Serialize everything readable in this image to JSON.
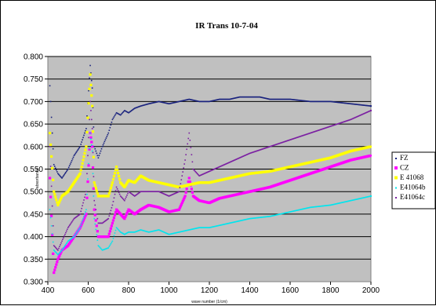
{
  "chart_data": {
    "type": "scatter",
    "title": "IR Trans  10-7-04",
    "xlabel": "wave number (1/cm)",
    "ylabel": "absorbance",
    "xlim": [
      400,
      2000
    ],
    "ylim": [
      0.3,
      0.8
    ],
    "x_ticks": [
      "400",
      "600",
      "800",
      "1000",
      "1200",
      "1400",
      "1600",
      "1800",
      "2000"
    ],
    "y_ticks": [
      "0.300",
      "0.350",
      "0.400",
      "0.450",
      "0.500",
      "0.550",
      "0.600",
      "0.650",
      "0.700",
      "0.750",
      "0.800"
    ],
    "grid": "horizontal",
    "legend_position": "right",
    "series": [
      {
        "name": "FZ",
        "color": "#1a237e",
        "marker": "small-dot",
        "x": [
          410,
          430,
          450,
          470,
          500,
          530,
          560,
          590,
          610,
          620,
          630,
          650,
          670,
          700,
          720,
          740,
          760,
          780,
          800,
          830,
          860,
          900,
          950,
          1000,
          1050,
          1100,
          1150,
          1200,
          1250,
          1300,
          1350,
          1400,
          1450,
          1500,
          1600,
          1700,
          1800,
          1900,
          2000
        ],
        "y": [
          0.735,
          0.56,
          0.54,
          0.53,
          0.55,
          0.58,
          0.6,
          0.64,
          0.78,
          0.73,
          0.6,
          0.575,
          0.6,
          0.63,
          0.66,
          0.675,
          0.67,
          0.68,
          0.675,
          0.685,
          0.69,
          0.695,
          0.7,
          0.695,
          0.7,
          0.705,
          0.7,
          0.7,
          0.705,
          0.705,
          0.71,
          0.71,
          0.71,
          0.705,
          0.705,
          0.7,
          0.7,
          0.695,
          0.69
        ]
      },
      {
        "name": "CZ",
        "color": "#ff00ff",
        "marker": "square",
        "x": [
          410,
          430,
          450,
          470,
          500,
          530,
          560,
          590,
          610,
          620,
          630,
          650,
          670,
          700,
          720,
          740,
          760,
          780,
          800,
          830,
          860,
          900,
          950,
          1000,
          1050,
          1080,
          1100,
          1120,
          1150,
          1200,
          1250,
          1300,
          1400,
          1500,
          1600,
          1700,
          1800,
          1900,
          2000
        ],
        "y": [
          0.53,
          0.32,
          0.35,
          0.37,
          0.38,
          0.4,
          0.42,
          0.45,
          0.63,
          0.6,
          0.46,
          0.4,
          0.4,
          0.4,
          0.43,
          0.46,
          0.45,
          0.44,
          0.46,
          0.45,
          0.46,
          0.47,
          0.465,
          0.455,
          0.46,
          0.49,
          0.53,
          0.49,
          0.48,
          0.475,
          0.485,
          0.49,
          0.5,
          0.51,
          0.525,
          0.54,
          0.555,
          0.57,
          0.58
        ]
      },
      {
        "name": "E 41068",
        "color": "#ffff00",
        "marker": "square",
        "x": [
          410,
          430,
          450,
          470,
          500,
          530,
          560,
          590,
          610,
          620,
          630,
          650,
          670,
          700,
          720,
          740,
          760,
          780,
          800,
          830,
          860,
          900,
          950,
          1000,
          1050,
          1100,
          1150,
          1200,
          1300,
          1400,
          1500,
          1600,
          1700,
          1800,
          1900,
          2000
        ],
        "y": [
          0.63,
          0.5,
          0.47,
          0.49,
          0.5,
          0.52,
          0.54,
          0.6,
          0.76,
          0.69,
          0.52,
          0.49,
          0.49,
          0.49,
          0.52,
          0.555,
          0.52,
          0.51,
          0.525,
          0.52,
          0.535,
          0.525,
          0.52,
          0.515,
          0.51,
          0.515,
          0.52,
          0.52,
          0.53,
          0.54,
          0.545,
          0.555,
          0.565,
          0.575,
          0.59,
          0.6
        ]
      },
      {
        "name": "E41064b",
        "color": "#00e5ee",
        "marker": "small-dot",
        "x": [
          410,
          430,
          450,
          470,
          500,
          530,
          560,
          590,
          610,
          620,
          630,
          650,
          670,
          700,
          720,
          740,
          760,
          780,
          800,
          830,
          860,
          900,
          950,
          1000,
          1050,
          1100,
          1150,
          1200,
          1300,
          1400,
          1500,
          1600,
          1700,
          1800,
          1900,
          2000
        ],
        "y": [
          0.46,
          0.37,
          0.36,
          0.37,
          0.39,
          0.4,
          0.42,
          0.46,
          0.63,
          0.59,
          0.44,
          0.38,
          0.37,
          0.375,
          0.39,
          0.42,
          0.41,
          0.405,
          0.41,
          0.41,
          0.415,
          0.41,
          0.415,
          0.405,
          0.41,
          0.415,
          0.42,
          0.42,
          0.43,
          0.44,
          0.445,
          0.455,
          0.465,
          0.47,
          0.48,
          0.49
        ]
      },
      {
        "name": "E41064c",
        "color": "#7b1fa2",
        "marker": "small-dot",
        "x": [
          410,
          430,
          450,
          470,
          500,
          530,
          560,
          590,
          610,
          620,
          630,
          650,
          670,
          700,
          720,
          740,
          760,
          780,
          800,
          830,
          860,
          900,
          950,
          1000,
          1050,
          1080,
          1100,
          1120,
          1150,
          1200,
          1300,
          1400,
          1500,
          1600,
          1700,
          1800,
          1900,
          2000
        ],
        "y": [
          0.6,
          0.38,
          0.37,
          0.39,
          0.42,
          0.44,
          0.45,
          0.5,
          0.7,
          0.64,
          0.48,
          0.43,
          0.43,
          0.44,
          0.47,
          0.51,
          0.49,
          0.48,
          0.5,
          0.49,
          0.5,
          0.5,
          0.5,
          0.49,
          0.5,
          0.57,
          0.63,
          0.55,
          0.535,
          0.545,
          0.565,
          0.585,
          0.6,
          0.615,
          0.63,
          0.645,
          0.66,
          0.68
        ]
      }
    ]
  }
}
